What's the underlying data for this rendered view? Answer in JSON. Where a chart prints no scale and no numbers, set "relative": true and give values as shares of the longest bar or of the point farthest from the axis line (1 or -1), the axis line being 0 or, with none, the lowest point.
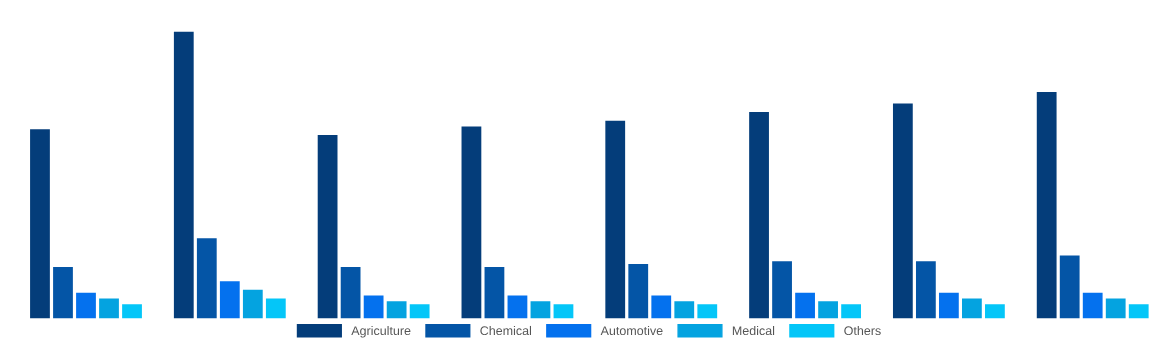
{
  "chart_data": {
    "type": "bar",
    "relative": true,
    "categories": [
      null,
      null,
      null,
      null,
      null,
      null,
      null,
      null
    ],
    "series": [
      {
        "name": "Agriculture",
        "color": "#043d7a",
        "values": [
          0.66,
          1,
          0.64,
          0.67,
          0.69,
          0.72,
          0.75,
          0.79
        ]
      },
      {
        "name": "Chemical",
        "color": "#0455a6",
        "values": [
          0.18,
          0.28,
          0.18,
          0.18,
          0.19,
          0.2,
          0.2,
          0.22
        ]
      },
      {
        "name": "Automotive",
        "color": "#0471ee",
        "values": [
          0.09,
          0.13,
          0.08,
          0.08,
          0.08,
          0.09,
          0.09,
          0.09
        ]
      },
      {
        "name": "Medical",
        "color": "#04a3e0",
        "values": [
          0.07,
          0.1,
          0.06,
          0.06,
          0.06,
          0.06,
          0.07,
          0.07
        ]
      },
      {
        "name": "Others",
        "color": "#04c6f8",
        "values": [
          0.05,
          0.07,
          0.05,
          0.05,
          0.05,
          0.05,
          0.05,
          0.05
        ]
      }
    ],
    "legend": "bottom",
    "grid": false
  }
}
